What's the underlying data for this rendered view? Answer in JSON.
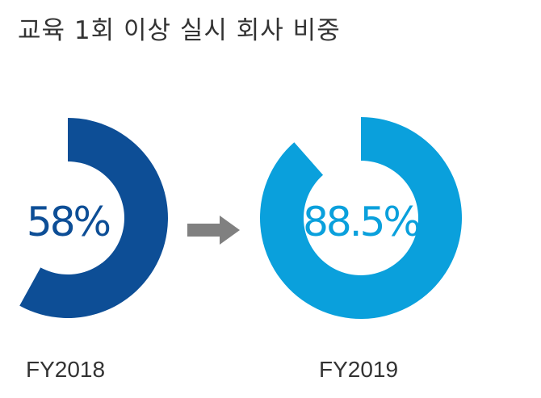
{
  "title": "교육 1회 이상 실시 회사 비중",
  "chart_data": {
    "type": "pie",
    "title": "교육 1회 이상 실시 회사 비중",
    "categories": [
      "FY2018",
      "FY2019"
    ],
    "values": [
      58,
      88.5
    ],
    "labels": [
      "58%",
      "88.5%"
    ],
    "unit": "%",
    "colors": [
      "#0d4e96",
      "#0aa0dc"
    ],
    "arrow_icon": "right-arrow-icon",
    "arrow_color": "#808080"
  }
}
